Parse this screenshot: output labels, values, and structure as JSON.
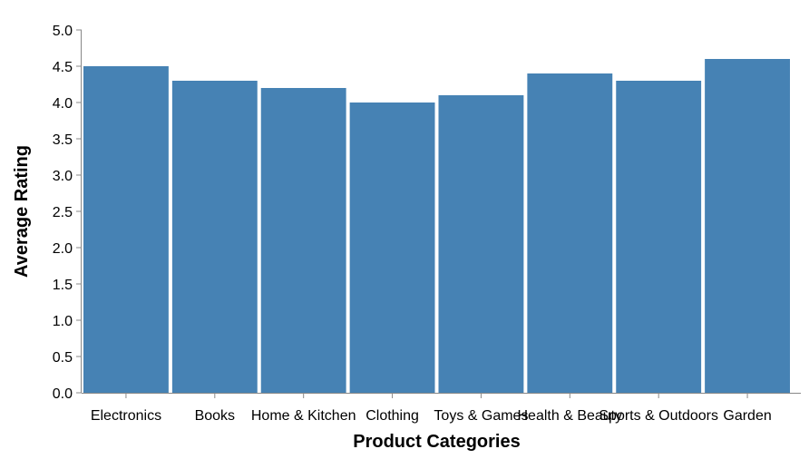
{
  "chart_data": {
    "type": "bar",
    "categories": [
      "Electronics",
      "Books",
      "Home & Kitchen",
      "Clothing",
      "Toys & Games",
      "Health & Beauty",
      "Sports & Outdoors",
      "Garden"
    ],
    "values": [
      4.5,
      4.3,
      4.2,
      4.0,
      4.1,
      4.4,
      4.3,
      4.6
    ],
    "title": "",
    "xlabel": "Product Categories",
    "ylabel": "Average Rating",
    "ylim": [
      0,
      5
    ],
    "yticks": [
      "0.0",
      "0.5",
      "1.0",
      "1.5",
      "2.0",
      "2.5",
      "3.0",
      "3.5",
      "4.0",
      "4.5",
      "5.0"
    ],
    "bar_color": "#4682b4",
    "grid": false,
    "legend": "none"
  }
}
